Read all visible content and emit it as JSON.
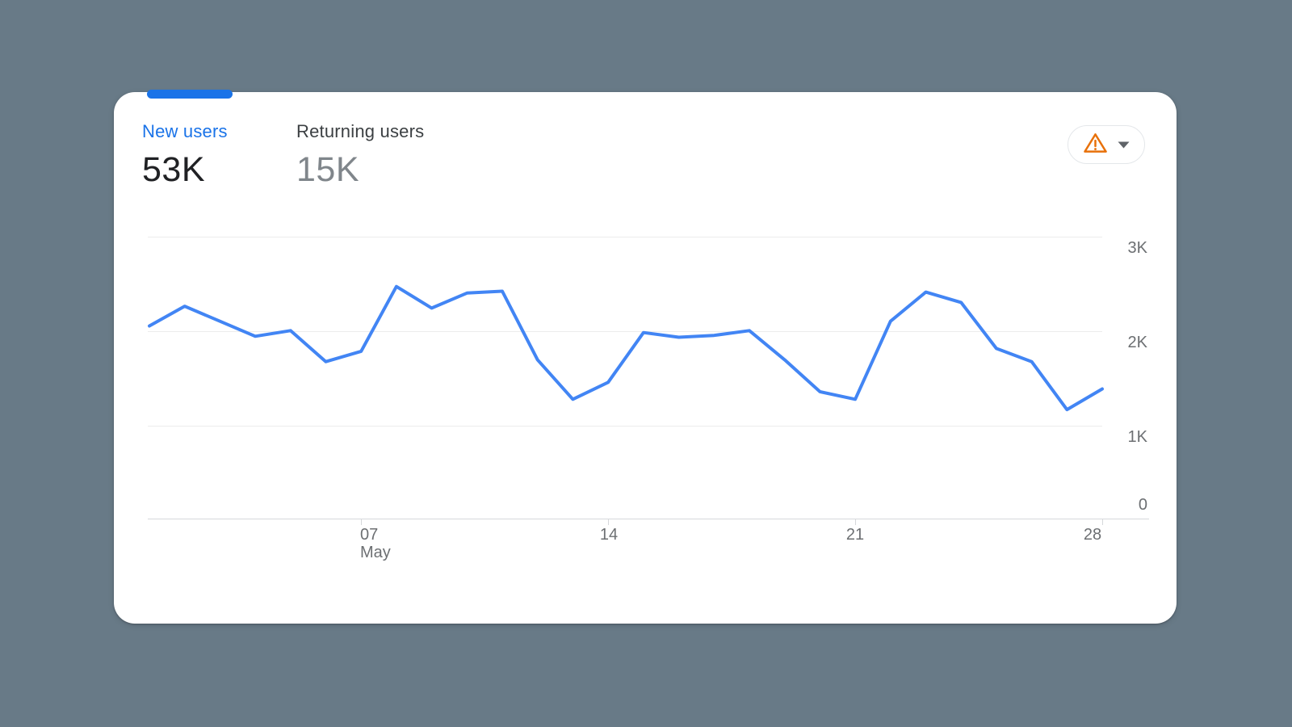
{
  "page": {
    "background_color": "#687a87"
  },
  "card": {
    "metrics": [
      {
        "label": "New users",
        "value": "53K",
        "selected": true
      },
      {
        "label": "Returning users",
        "value": "15K",
        "selected": false
      }
    ],
    "quality_button": {
      "warning_icon": "warning-triangle-icon",
      "caret_icon": "caret-down-icon",
      "warning_color": "#e8710a"
    }
  },
  "chart_data": {
    "type": "line",
    "title": "",
    "xlabel": "",
    "ylabel": "",
    "legend": "none",
    "grid": "horizontal",
    "line_color": "#4285f4",
    "ylim": [
      0,
      3000
    ],
    "x_days": [
      1,
      2,
      3,
      4,
      5,
      6,
      7,
      8,
      9,
      10,
      11,
      12,
      13,
      14,
      15,
      16,
      17,
      18,
      19,
      20,
      21,
      22,
      23,
      24,
      25,
      26,
      27,
      28
    ],
    "x_tick_labels": [
      "07",
      "14",
      "21",
      "28"
    ],
    "x_axis_month_label": "May",
    "y_tick_labels": [
      "3K",
      "2K",
      "1K",
      "0"
    ],
    "series": [
      {
        "name": "New users",
        "values": [
          2050,
          2260,
          2100,
          1940,
          2000,
          1670,
          1780,
          2470,
          2240,
          2400,
          2420,
          1690,
          1270,
          1450,
          1980,
          1930,
          1950,
          2000,
          1690,
          1350,
          1270,
          2100,
          2410,
          2300,
          1810,
          1670,
          1160,
          1380
        ]
      }
    ]
  }
}
